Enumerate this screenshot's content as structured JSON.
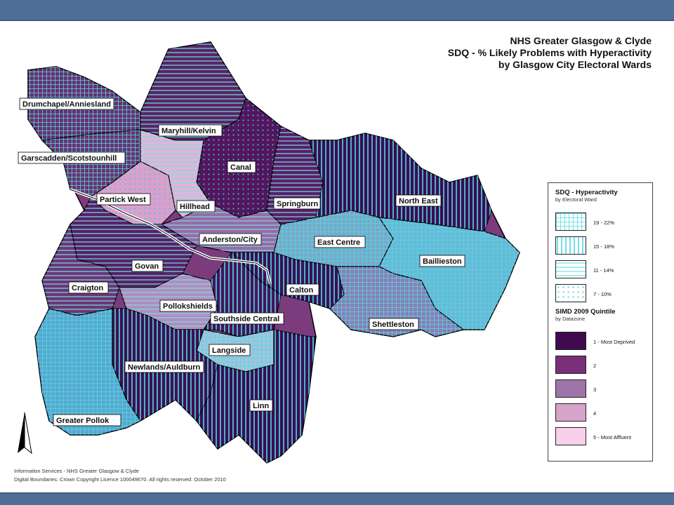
{
  "title": {
    "line1": "NHS Greater Glasgow & Clyde",
    "line2": "SDQ - % Likely Problems with Hyperactivity",
    "line3": "by Glasgow City Electoral Wards"
  },
  "wards": {
    "drumchapel": "Drumchapel/Anniesland",
    "garscadden": "Garscadden/Scotstounhill",
    "maryhill": "Maryhill/Kelvin",
    "canal": "Canal",
    "partick": "Partick West",
    "hillhead": "Hillhead",
    "springburn": "Springburn",
    "northeast": "North East",
    "anderston": "Anderston/City",
    "eastcentre": "East Centre",
    "baillieston": "Baillieston",
    "govan": "Govan",
    "craigton": "Craigton",
    "pollokshields": "Pollokshields",
    "calton": "Calton",
    "southside": "Southside Central",
    "shettleston": "Shettleston",
    "langside": "Langside",
    "newlands": "Newlands/Auldburn",
    "greaterpollok": "Greater Pollok",
    "linn": "Linn"
  },
  "legend": {
    "sdq_title": "SDQ - Hyperactivity",
    "sdq_sub": "by Electoral Ward",
    "sdq_items": [
      "19 - 22%",
      "15 - 18%",
      "11 - 14%",
      "7 - 10%"
    ],
    "simd_title": "SIMD 2009 Quintile",
    "simd_sub": "by Datazone",
    "simd_items": [
      "1 - Most Deprived",
      "2",
      "3",
      "4",
      "5 - Most Affluent"
    ],
    "simd_colors": [
      "#3f0a4f",
      "#7a2d78",
      "#9e74a8",
      "#d6a3c9",
      "#f8d0ea"
    ]
  },
  "footer": {
    "line1": "Information Services - NHS Greater Glasgow & Clyde",
    "line2": "Digital Boundaries: Crown Copyright Licence 100049670.  All rights reserved. October 2010"
  }
}
